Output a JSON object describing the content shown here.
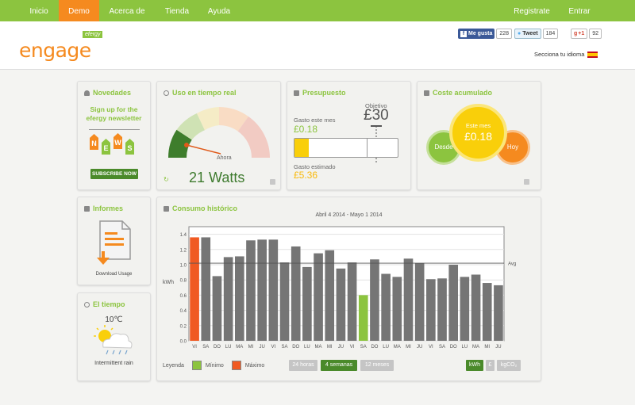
{
  "nav": {
    "left": [
      {
        "label": "Inicio",
        "active": false
      },
      {
        "label": "Demo",
        "active": true
      },
      {
        "label": "Acerca de",
        "active": false
      },
      {
        "label": "Tienda",
        "active": false
      },
      {
        "label": "Ayuda",
        "active": false
      }
    ],
    "right": [
      {
        "label": "Registrate"
      },
      {
        "label": "Entrar"
      }
    ]
  },
  "header": {
    "logo_text": "engage",
    "logo_tag": "efergy",
    "social": {
      "fb_label": "Me gusta",
      "fb_count": "228",
      "tw_label": "Tweet",
      "tw_count": "184",
      "gp_label": "+1",
      "gp_count": "92"
    },
    "language_label": "Secciona tu idioma"
  },
  "colors": {
    "green": "#8cc43f",
    "orange": "#f58a1f",
    "dark_green": "#4a8a2a",
    "bar_gray": "#757575",
    "yellow": "#f9cf0a"
  },
  "cards": {
    "novedades": {
      "title": "Novedades",
      "text_line1": "Sign up for the",
      "text_line2": "efergy newsletter",
      "tags": [
        "N",
        "E",
        "W",
        "S"
      ],
      "button": "SUBSCRIBE NOW"
    },
    "realtime": {
      "title": "Uso en tiempo real",
      "gauge_label": "Ahora",
      "gauge_fraction": 0.12,
      "watts": "21 Watts"
    },
    "budget": {
      "title": "Presupuesto",
      "spent_label": "Gasto este mes",
      "spent_value": "£0.18",
      "target_label": "Objetivo",
      "target_value": "£30",
      "estimated_label": "Gasto estimado",
      "estimated_value": "£5.36",
      "spent_fraction": 0.14,
      "estimated_fraction": 0.7
    },
    "cost": {
      "title": "Coste acumulado",
      "since_label": "Desde",
      "month_label": "Este mes",
      "month_value": "£0.18",
      "today_label": "Hoy"
    },
    "informes": {
      "title": "Informes",
      "download_label": "Download Usage"
    },
    "weather": {
      "title": "El tiempo",
      "temperature": "10℃",
      "condition": "Intermittent rain"
    },
    "historic": {
      "title": "Consumo histórico",
      "legend_label": "Leyenda",
      "min_label": "Mínimo",
      "max_label": "Máximo",
      "ranges": [
        {
          "label": "24 horas",
          "active": false
        },
        {
          "label": "4 semanas",
          "active": true
        },
        {
          "label": "12 meses",
          "active": false
        }
      ],
      "units": [
        {
          "label": "kWh",
          "active": true
        },
        {
          "label": "£",
          "active": false
        },
        {
          "label": "kgCO₂",
          "active": false
        }
      ]
    }
  },
  "chart_data": {
    "type": "bar",
    "title": "Abril 4 2014 - Mayo 1 2014",
    "xlabel": "",
    "ylabel": "kWh",
    "ylim": [
      0,
      1.5
    ],
    "yticks": [
      0.0,
      0.2,
      0.4,
      0.6,
      0.8,
      1.0,
      1.2,
      1.4
    ],
    "grid": true,
    "avg_label": "Avg",
    "avg_value": 1.02,
    "categories": [
      "VI",
      "SA",
      "DO",
      "LU",
      "MA",
      "MI",
      "JU",
      "VI",
      "SA",
      "DO",
      "LU",
      "MA",
      "MI",
      "JU",
      "VI",
      "SA",
      "DO",
      "LU",
      "MA",
      "MI",
      "JU",
      "VI",
      "SA",
      "DO",
      "LU",
      "MA",
      "MI",
      "JU"
    ],
    "values": [
      1.36,
      1.36,
      0.85,
      1.1,
      1.11,
      1.32,
      1.33,
      1.33,
      1.03,
      1.24,
      0.97,
      1.15,
      1.19,
      0.95,
      1.03,
      0.6,
      1.07,
      0.88,
      0.84,
      1.08,
      1.02,
      0.81,
      0.82,
      1.0,
      0.84,
      0.87,
      0.76,
      0.73
    ],
    "max_index": 0,
    "min_index": 15,
    "min_color": "#8cc43f",
    "max_color": "#f05a22"
  }
}
